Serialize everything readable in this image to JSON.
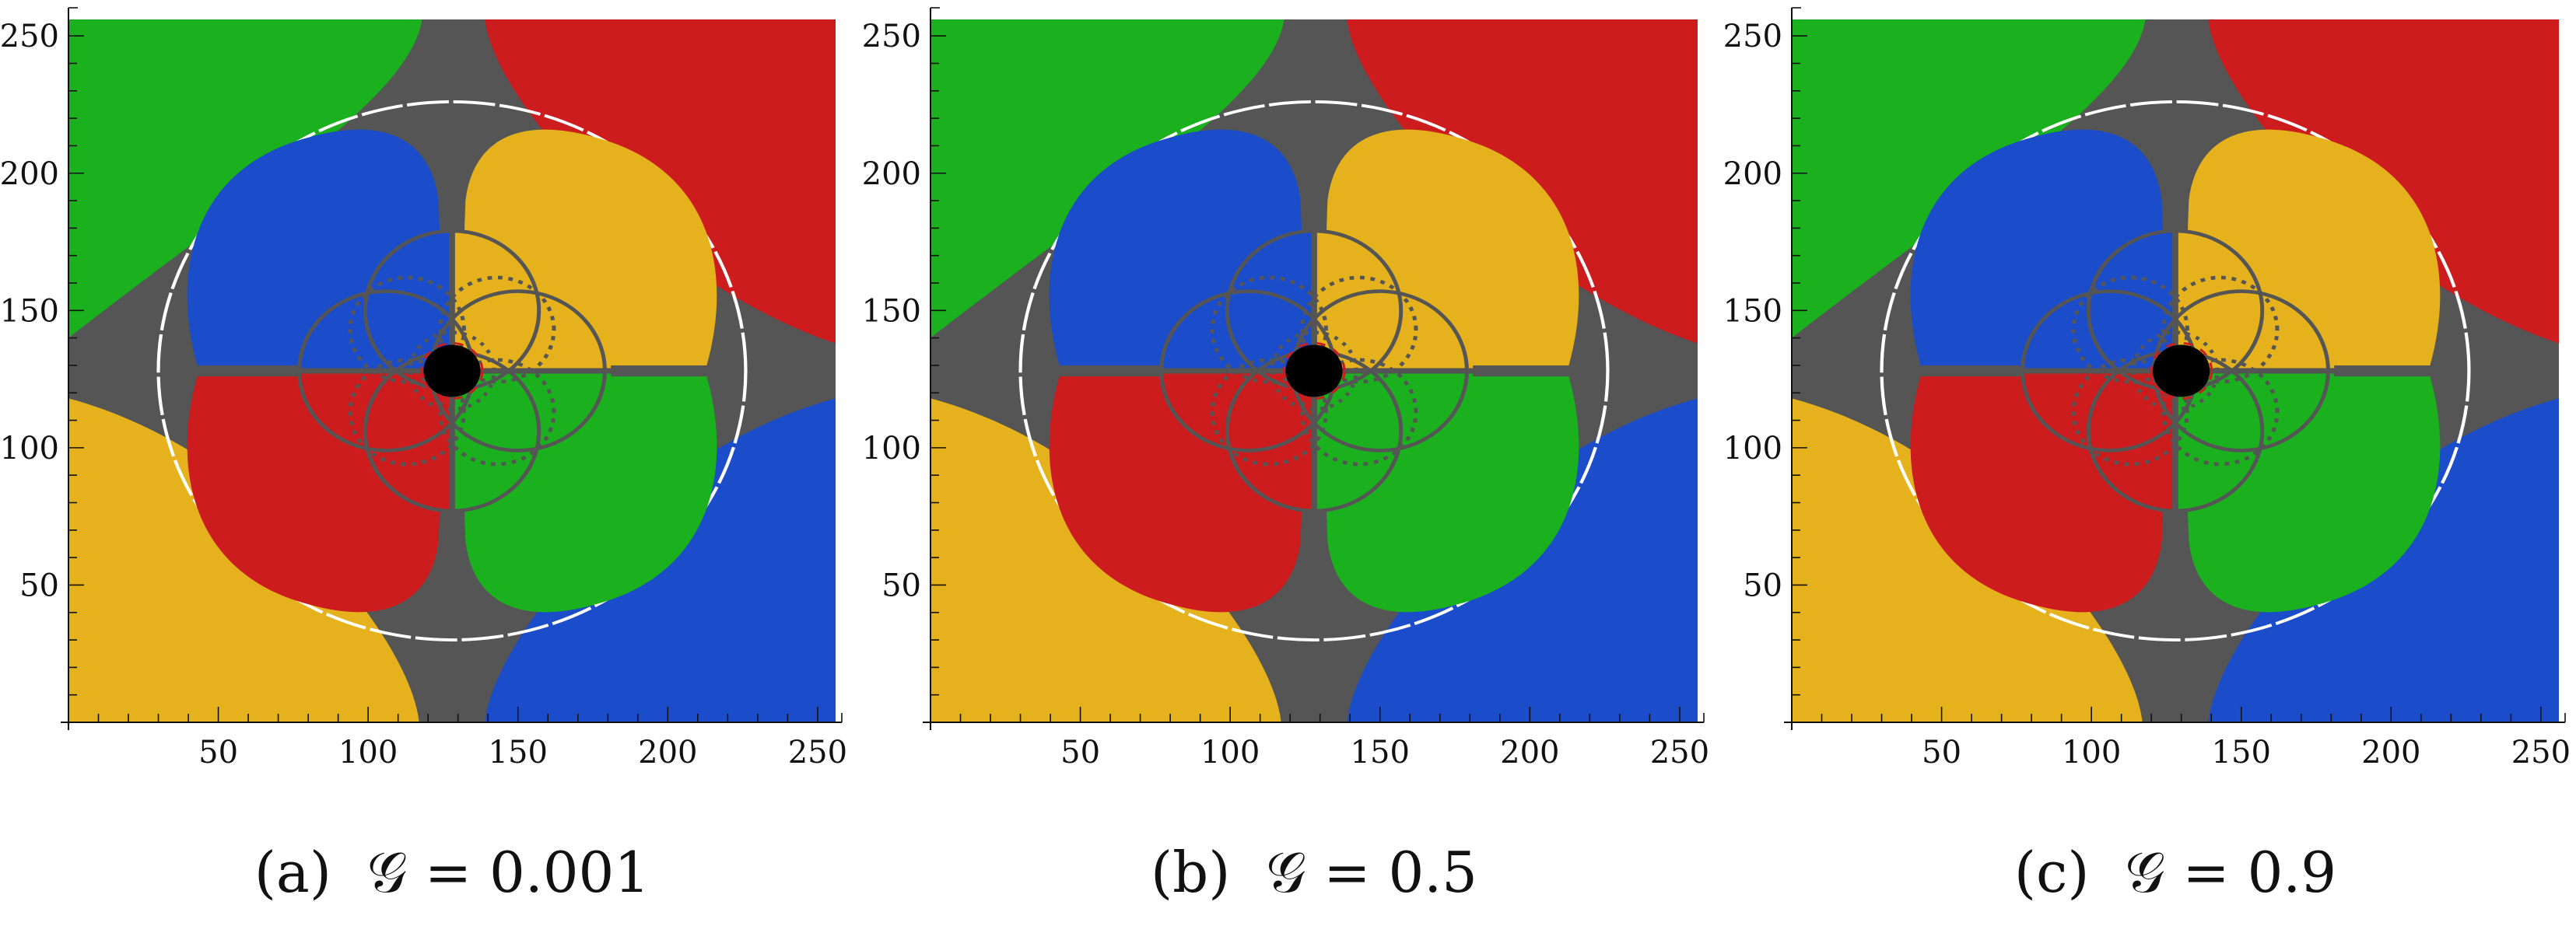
{
  "chart_data": [
    {
      "type": "heatmap",
      "panel": "a",
      "caption": "(a)  𝒢 = 0.001",
      "xlim": [
        0,
        256
      ],
      "ylim": [
        0,
        256
      ],
      "xticks": [
        50,
        100,
        150,
        200,
        250
      ],
      "yticks": [
        50,
        100,
        150,
        200,
        250
      ],
      "minor_tick_step": 10,
      "shadow_center": [
        128,
        128
      ],
      "shadow_radius": 9.5,
      "einstein_ring_radius": 98
    },
    {
      "type": "heatmap",
      "panel": "b",
      "caption": "(b)  𝒢 = 0.5",
      "xlim": [
        0,
        256
      ],
      "ylim": [
        0,
        256
      ],
      "xticks": [
        50,
        100,
        150,
        200,
        250
      ],
      "yticks": [
        50,
        100,
        150,
        200,
        250
      ],
      "minor_tick_step": 10,
      "shadow_center": [
        128,
        128
      ],
      "shadow_radius": 9.5,
      "einstein_ring_radius": 98
    },
    {
      "type": "heatmap",
      "panel": "c",
      "caption": "(c)  𝒢 = 0.9",
      "xlim": [
        0,
        256
      ],
      "ylim": [
        0,
        256
      ],
      "xticks": [
        50,
        100,
        150,
        200,
        250
      ],
      "yticks": [
        50,
        100,
        150,
        200,
        250
      ],
      "minor_tick_step": 10,
      "shadow_center": [
        130,
        128
      ],
      "shadow_radius": 9.5,
      "einstein_ring_radius": 98
    }
  ],
  "colors": {
    "background": "#555555",
    "green": "#1bb01e",
    "red": "#cc1c1e",
    "yellow": "#e5b21d",
    "blue": "#1b4dca",
    "shadow": "#000000",
    "ring": "#ffffff"
  }
}
